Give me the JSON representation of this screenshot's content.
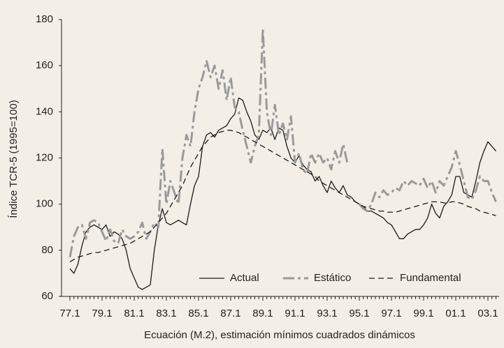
{
  "chart_data": {
    "type": "line",
    "xlabel": "Ecuación (M.2), estimación mínimos cuadrados dinámicos",
    "ylabel": "Índice TCR-5 (1995=100)",
    "categories": [
      "77.1",
      null,
      null,
      null,
      null,
      null,
      null,
      null,
      "79.1",
      null,
      null,
      null,
      null,
      null,
      null,
      null,
      "81.1",
      null,
      null,
      null,
      null,
      null,
      null,
      null,
      "83.1",
      null,
      null,
      null,
      null,
      null,
      null,
      null,
      "85.1",
      null,
      null,
      null,
      null,
      null,
      null,
      null,
      "87.1",
      null,
      null,
      null,
      null,
      null,
      null,
      null,
      "89.1",
      null,
      null,
      null,
      null,
      null,
      null,
      null,
      "91.1",
      null,
      null,
      null,
      null,
      null,
      null,
      null,
      "93.1",
      null,
      null,
      null,
      null,
      null,
      null,
      null,
      "95.1",
      null,
      null,
      null,
      null,
      null,
      null,
      null,
      "97.1",
      null,
      null,
      null,
      null,
      null,
      null,
      null,
      "99.1",
      null,
      null,
      null,
      null,
      null,
      null,
      null,
      "01.1",
      null,
      null,
      null,
      null,
      null,
      null,
      null,
      "03.1",
      null,
      null
    ],
    "ylim": [
      60,
      180
    ],
    "yticks": [
      60,
      80,
      100,
      120,
      140,
      160,
      180
    ],
    "grid": false,
    "legend": "lower right",
    "series": [
      {
        "name": "Actual",
        "color": "#1a1a1a",
        "style": "solid",
        "values": [
          72,
          70,
          74,
          82,
          88,
          90,
          91,
          90,
          89,
          91,
          86,
          88,
          87,
          85,
          80,
          72,
          68,
          64,
          63,
          64,
          65,
          80,
          91,
          98,
          92,
          91,
          92,
          93,
          92,
          91,
          100,
          108,
          112,
          125,
          130,
          131,
          129,
          132,
          133,
          134,
          137,
          139,
          146,
          145,
          140,
          136,
          130,
          128,
          132,
          131,
          133,
          128,
          133,
          132,
          125,
          120,
          118,
          121,
          117,
          115,
          114,
          110,
          112,
          108,
          105,
          110,
          107,
          105,
          108,
          104,
          103,
          101,
          100,
          99,
          97,
          97,
          96,
          95,
          94,
          92,
          91,
          88,
          85,
          85,
          87,
          88,
          89,
          89,
          91,
          94,
          100,
          96,
          94,
          99,
          101,
          104,
          112,
          112,
          105,
          104,
          103,
          110,
          118,
          123,
          127,
          125,
          123
        ]
      },
      {
        "name": "Estático",
        "color": "#9a9a9a",
        "style": "dashdot",
        "values": [
          77,
          86,
          90,
          91,
          85,
          92,
          93,
          92,
          88,
          84,
          89,
          84,
          83,
          89,
          86,
          85,
          86,
          88,
          92,
          85,
          88,
          92,
          90,
          124,
          100,
          110,
          105,
          100,
          120,
          130,
          125,
          140,
          150,
          155,
          162,
          155,
          160,
          150,
          158,
          145,
          155,
          142,
          140,
          132,
          125,
          118,
          125,
          130,
          176,
          140,
          130,
          143,
          130,
          135,
          128,
          138,
          118,
          122,
          115,
          113,
          122,
          118,
          122,
          118,
          120,
          115,
          123,
          118,
          126,
          118,
          null,
          null,
          100,
          98,
          97,
          100,
          105,
          103,
          106,
          104,
          105,
          107,
          106,
          110,
          108,
          110,
          109,
          108,
          111,
          107,
          110,
          105,
          110,
          108,
          112,
          116,
          123,
          117,
          110,
          103,
          102,
          106,
          112,
          110,
          110,
          105,
          101
        ]
      },
      {
        "name": "Fundamental",
        "color": "#1a1a1a",
        "style": "dashed",
        "values": [
          75,
          76,
          77,
          77.5,
          78,
          78.5,
          79,
          79,
          79.5,
          80,
          80.5,
          81,
          81.5,
          82,
          82.5,
          83,
          84,
          85,
          86,
          87,
          88,
          90,
          92,
          94,
          96,
          99,
          102,
          105,
          108,
          112,
          116,
          119,
          122,
          125,
          127,
          129,
          130,
          131,
          131.5,
          132,
          132,
          131.5,
          131,
          130,
          129,
          128,
          127,
          126,
          125,
          124,
          123,
          122,
          121,
          120,
          119,
          118,
          117,
          116,
          115,
          114,
          113,
          112,
          110,
          109,
          108,
          107,
          106,
          105,
          104,
          103,
          102,
          101,
          100,
          99,
          98.5,
          98,
          97.5,
          97,
          97,
          96.5,
          96.5,
          96.5,
          97,
          97.5,
          98,
          98.5,
          99,
          99.5,
          100,
          100.5,
          101,
          101,
          101,
          100.5,
          100.5,
          101,
          101,
          100.5,
          100,
          99,
          98.5,
          98,
          97,
          96.5,
          96,
          95.5,
          95
        ]
      }
    ]
  }
}
